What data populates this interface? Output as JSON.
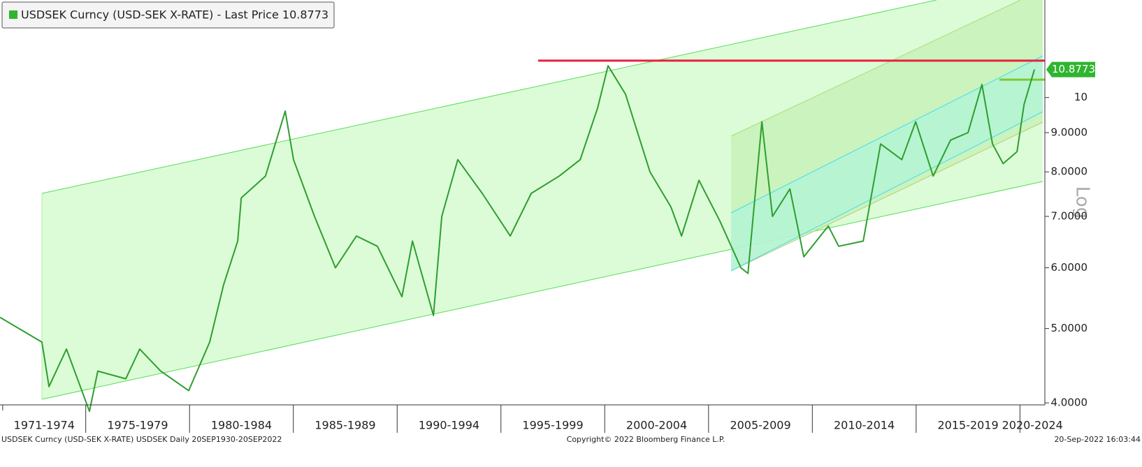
{
  "chart_data": {
    "type": "line",
    "series": [
      {
        "name": "USDSEK Curncy (USD-SEK X-RATE) - Last Price 10.8773",
        "color": "#2e9e2e",
        "x": [
          1970.87,
          1972.89,
          1973.23,
          1974.07,
          1975.18,
          1975.58,
          1976.93,
          1977.6,
          1978.61,
          1979.96,
          1980.97,
          1981.64,
          1982.32,
          1982.49,
          1983.66,
          1984.61,
          1985.01,
          1986.02,
          1987.03,
          1988.04,
          1989.05,
          1990.23,
          1990.74,
          1991.75,
          1992.15,
          1992.92,
          1994.1,
          1995.45,
          1996.46,
          1997.81,
          1998.82,
          1999.66,
          2000.16,
          2001.0,
          2002.18,
          2003.19,
          2003.7,
          2004.54,
          2005.55,
          2006.56,
          2006.9,
          2007.57,
          2008.08,
          2008.92,
          2009.59,
          2010.77,
          2011.27,
          2012.45,
          2013.29,
          2014.31,
          2014.98,
          2015.82,
          2016.66,
          2017.5,
          2018.17,
          2018.68,
          2019.19,
          2019.86,
          2020.2,
          2020.7
        ],
        "values": [
          5.17,
          4.8,
          4.2,
          4.7,
          3.9,
          4.4,
          4.3,
          4.7,
          4.4,
          4.15,
          4.8,
          5.7,
          6.5,
          7.4,
          7.9,
          9.6,
          8.3,
          7.0,
          6.0,
          6.6,
          6.4,
          5.5,
          6.5,
          5.2,
          7.0,
          8.3,
          7.5,
          6.6,
          7.5,
          7.9,
          8.3,
          9.7,
          11.0,
          10.1,
          8.0,
          7.2,
          6.6,
          7.8,
          6.9,
          6.0,
          5.9,
          9.3,
          7.0,
          7.6,
          6.2,
          6.8,
          6.4,
          6.5,
          8.7,
          8.3,
          9.3,
          7.9,
          8.8,
          9.0,
          10.4,
          8.7,
          8.2,
          8.5,
          9.8,
          10.88
        ]
      }
    ],
    "last_price": 10.8773,
    "levels": [
      {
        "value": 11.17,
        "color": "#e8203c"
      },
      {
        "value": 10.55,
        "color": "#7ccc2a"
      }
    ],
    "xlim": [
      1970.87,
      2021.2
    ],
    "x_periods": [
      {
        "label": "1971-1974",
        "start": 1971,
        "end": 1975
      },
      {
        "label": "1975-1979",
        "start": 1975,
        "end": 1980
      },
      {
        "label": "1980-1984",
        "start": 1980,
        "end": 1985
      },
      {
        "label": "1985-1989",
        "start": 1985,
        "end": 1990
      },
      {
        "label": "1990-1994",
        "start": 1990,
        "end": 1995
      },
      {
        "label": "1995-1999",
        "start": 1995,
        "end": 2000
      },
      {
        "label": "2000-2004",
        "start": 2000,
        "end": 2005
      },
      {
        "label": "2005-2009",
        "start": 2005,
        "end": 2010
      },
      {
        "label": "2010-2014",
        "start": 2010,
        "end": 2015
      },
      {
        "label": "2015-2019",
        "start": 2015,
        "end": 2020
      },
      {
        "label": "2020-2024",
        "start": 2020,
        "end": 2025
      }
    ],
    "ylim": [
      3.976,
      13.4
    ],
    "log_scale": true,
    "yticks": [
      {
        "value": 4,
        "label": "4.0000"
      },
      {
        "value": 5,
        "label": "5.0000"
      },
      {
        "value": 6,
        "label": "6.0000"
      },
      {
        "value": 7,
        "label": "7.0000"
      },
      {
        "value": 8,
        "label": "8.0000"
      },
      {
        "value": 9,
        "label": "9.0000"
      },
      10
    ],
    "y_axis_label": "Log",
    "footer_left": "USDSEK Curncy (USD-SEK X-RATE) USDSEK  Daily 20SEP1930-20SEP2022",
    "footer_center": "Copyright© 2022 Bloomberg Finance L.P.",
    "footer_right": "20-Sep-2022 16:03:44"
  }
}
